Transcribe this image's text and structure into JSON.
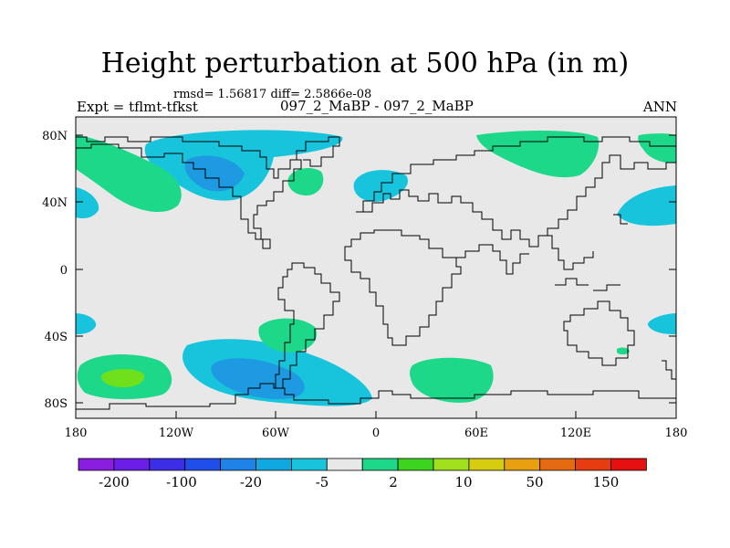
{
  "header": {
    "title": "Height perturbation at 500 hPa (in m)",
    "stats": "rmsd= 1.56817 diff= 2.5866e-08",
    "left_label": "Expt = tflmt-tfkst",
    "center_label": "097_2_MaBP - 097_2_MaBP",
    "right_label": "ANN"
  },
  "axes": {
    "lat_labels": [
      "80N",
      "40N",
      "0",
      "40S",
      "80S"
    ],
    "lon_labels": [
      "180",
      "120W",
      "60W",
      "0",
      "60E",
      "120E",
      "180"
    ]
  },
  "colorbar": {
    "colors": [
      "#8a1ee0",
      "#6a1ee8",
      "#3c2ee6",
      "#1f4fe8",
      "#1e82e6",
      "#10a8e0",
      "#17c4dc",
      "#e8e8e8",
      "#1ed88a",
      "#3cd41e",
      "#a0e01c",
      "#d6cc10",
      "#e8a010",
      "#e66a10",
      "#e63c10",
      "#e61010"
    ],
    "labels": [
      "-200",
      "-100",
      "-20",
      "-5",
      "2",
      "10",
      "50",
      "150"
    ]
  },
  "colors": {
    "background_field": "#e8e8e8",
    "negative_light": "#17c4dc",
    "negative_mid": "#1e9ae2",
    "positive_light": "#1ed88a",
    "positive_mid": "#6fe01c"
  }
}
